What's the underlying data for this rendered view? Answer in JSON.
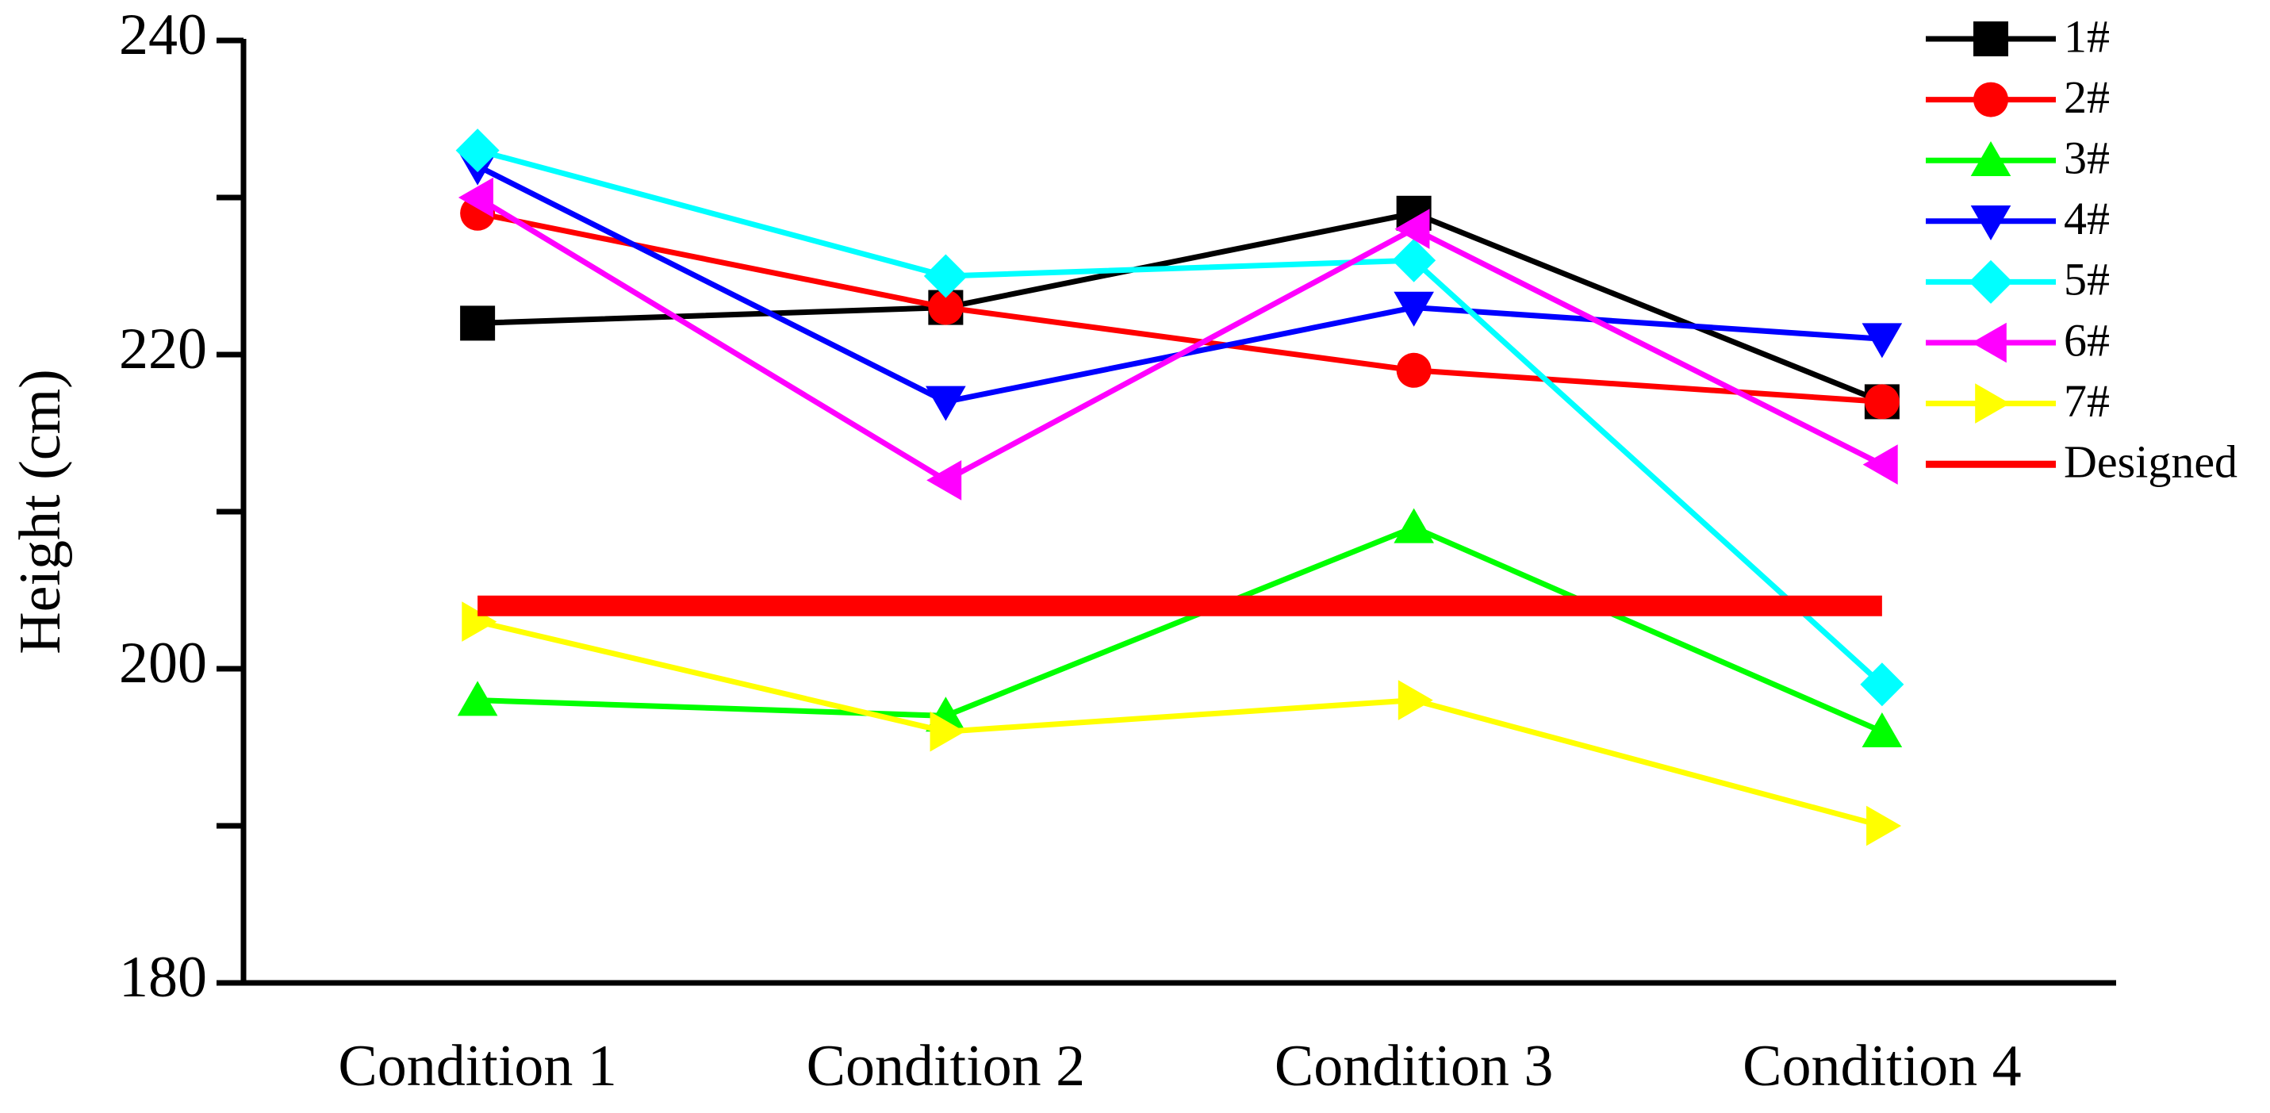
{
  "chart_data": {
    "type": "line",
    "y_label": "Height (cm)",
    "categories": [
      "Condition 1",
      "Condition 2",
      "Condition 3",
      "Condition 4"
    ],
    "ylim": [
      180,
      240
    ],
    "yticks": [
      180,
      200,
      220,
      240
    ],
    "yminorticks": [
      190,
      210,
      230
    ],
    "legend": "upper right",
    "series": [
      {
        "name": "1#",
        "color": "#000000",
        "marker": "square",
        "values": [
          222,
          223,
          229,
          217
        ]
      },
      {
        "name": "2#",
        "color": "#ff0000",
        "marker": "circle",
        "values": [
          229,
          223,
          219,
          217
        ]
      },
      {
        "name": "3#",
        "color": "#00ff00",
        "marker": "triangle-up",
        "values": [
          198,
          197,
          209,
          196
        ]
      },
      {
        "name": "4#",
        "color": "#0000ff",
        "marker": "triangle-down",
        "values": [
          232,
          217,
          223,
          221
        ]
      },
      {
        "name": "5#",
        "color": "#00ffff",
        "marker": "diamond",
        "values": [
          233,
          225,
          226,
          199
        ]
      },
      {
        "name": "6#",
        "color": "#ff00ff",
        "marker": "triangle-left",
        "values": [
          230,
          212,
          228,
          213
        ]
      },
      {
        "name": "7#",
        "color": "#ffff00",
        "marker": "triangle-right",
        "values": [
          203,
          196,
          198,
          190
        ]
      },
      {
        "name": "Designed",
        "color": "#ff0000",
        "marker": "none",
        "width": "thick",
        "values": [
          204,
          204,
          204,
          204
        ]
      }
    ]
  }
}
